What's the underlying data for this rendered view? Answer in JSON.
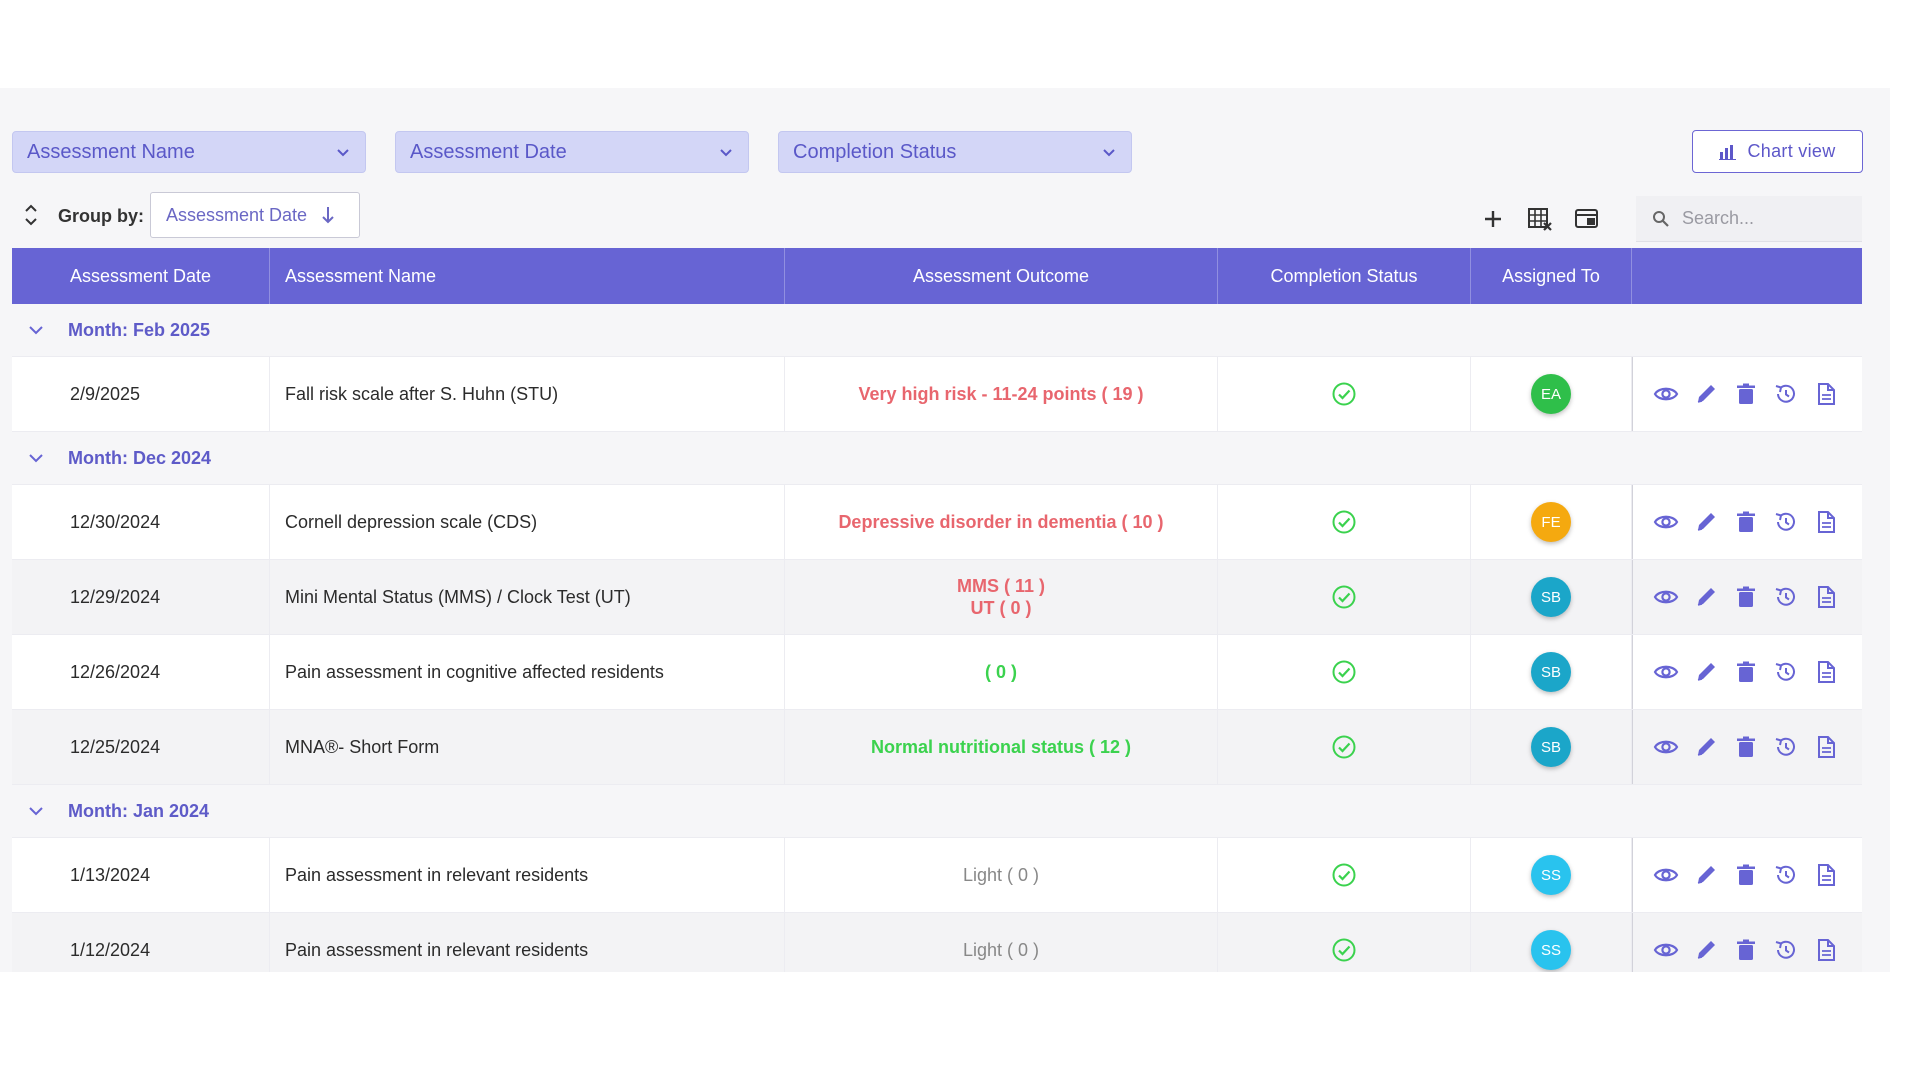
{
  "filters": {
    "assessment_name": "Assessment Name",
    "assessment_date": "Assessment Date",
    "completion_status": "Completion Status"
  },
  "chart_view_label": "Chart view",
  "toolbar": {
    "group_by_label": "Group by:",
    "group_by_value": "Assessment Date",
    "search_placeholder": "Search..."
  },
  "table": {
    "headers": {
      "date": "Assessment Date",
      "name": "Assessment Name",
      "outcome": "Assessment Outcome",
      "status": "Completion Status",
      "assigned": "Assigned To"
    },
    "groups": [
      {
        "label": "Month: Feb 2025",
        "rows": [
          {
            "date": "2/9/2025",
            "name": "Fall risk scale after S. Huhn (STU)",
            "outcome": [
              "Very high risk - 11-24 points ( 19 )"
            ],
            "outcome_color": "red",
            "assignee": "EA",
            "avatar_color": "#2fbf4a",
            "alt": false
          }
        ]
      },
      {
        "label": "Month: Dec 2024",
        "rows": [
          {
            "date": "12/30/2024",
            "name": "Cornell depression scale (CDS)",
            "outcome": [
              "Depressive disorder in dementia ( 10 )"
            ],
            "outcome_color": "red",
            "assignee": "FE",
            "avatar_color": "#f5a90f",
            "alt": false
          },
          {
            "date": "12/29/2024",
            "name": "Mini Mental Status (MMS) / Clock Test (UT)",
            "outcome": [
              "MMS ( 11 )",
              "UT ( 0 )"
            ],
            "outcome_color": "red",
            "assignee": "SB",
            "avatar_color": "#1ba6c9",
            "alt": true
          },
          {
            "date": "12/26/2024",
            "name": "Pain assessment in cognitive affected residents",
            "outcome": [
              "( 0 )"
            ],
            "outcome_color": "green",
            "assignee": "SB",
            "avatar_color": "#1ba6c9",
            "alt": false
          },
          {
            "date": "12/25/2024",
            "name": "MNA®- Short Form",
            "outcome": [
              "Normal nutritional status ( 12 )"
            ],
            "outcome_color": "green",
            "assignee": "SB",
            "avatar_color": "#1ba6c9",
            "alt": true
          }
        ]
      },
      {
        "label": "Month: Jan 2024",
        "rows": [
          {
            "date": "1/13/2024",
            "name": "Pain assessment in relevant residents",
            "outcome": [
              "Light ( 0 )"
            ],
            "outcome_color": "gray",
            "assignee": "SS",
            "avatar_color": "#29c3ee",
            "alt": false
          },
          {
            "date": "1/12/2024",
            "name": "Pain assessment in relevant residents",
            "outcome": [
              "Light ( 0 )"
            ],
            "outcome_color": "gray",
            "assignee": "SS",
            "avatar_color": "#29c3ee",
            "alt": true
          }
        ]
      }
    ]
  },
  "colors": {
    "accent": "#6764d4",
    "check_green": "#3bd24e",
    "outcome_red": "#e8666e",
    "outcome_green": "#3bd24e",
    "outcome_gray": "#888888"
  },
  "icons": {
    "row_actions": [
      "eye-icon",
      "pencil-icon",
      "trash-icon",
      "history-icon",
      "document-icon"
    ],
    "toolbar": [
      "plus-icon",
      "grid-clear-icon",
      "panel-icon",
      "search-icon",
      "sort-icon"
    ]
  }
}
